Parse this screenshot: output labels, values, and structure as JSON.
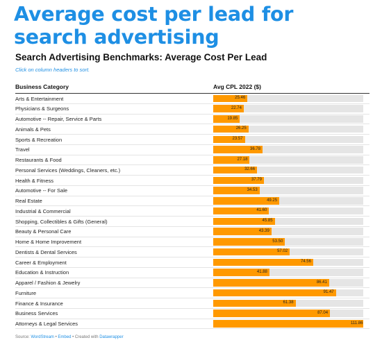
{
  "headline": "Average cost per lead for search advertising",
  "subtitle": "Search Advertising Benchmarks: Average Cost Per Lead",
  "note": "Click on column headers to sort.",
  "columns": {
    "category": "Business Category",
    "value": "Avg CPL 2022 ($)"
  },
  "footer": {
    "source_label": "Source:",
    "source_link": "WordStream",
    "sep1": "•",
    "embed": "Embed",
    "sep2": "•",
    "created_with": "Created with",
    "tool": "Datawrapper"
  },
  "colors": {
    "headline": "#1E8FE4",
    "bar": "#FF9900",
    "track": "#e5e5e5"
  },
  "chart_data": {
    "type": "bar",
    "title": "Search Advertising Benchmarks: Average Cost Per Lead",
    "ylabel": "Avg CPL 2022 ($)",
    "xlabel": "Business Category",
    "ylim": [
      0,
      111.86
    ],
    "grid": false,
    "categories": [
      "Arts & Entertainment",
      "Physicians & Surgeons",
      "Automotive -- Repair, Service & Parts",
      "Animals & Pets",
      "Sports & Recreation",
      "Travel",
      "Restaurants & Food",
      "Personal Services (Weddings, Cleaners, etc.)",
      "Health & Fitness",
      "Automotive -- For Sale",
      "Real Estate",
      "Industrial & Commercial",
      "Shopping, Collectibles & Gifts (General)",
      "Beauty & Personal Care",
      "Home & Home Improvement",
      "Dentists & Dental Services",
      "Career & Employment",
      "Education & Instruction",
      "Apparel / Fashion & Jewelry",
      "Furniture",
      "Finance & Insurance",
      "Business Services",
      "Attorneys & Legal Services"
    ],
    "values": [
      25.46,
      22.74,
      19.85,
      26.25,
      23.57,
      36.78,
      27.18,
      32.66,
      37.79,
      34.53,
      49.25,
      41.6,
      45.85,
      43.39,
      53.5,
      57.02,
      74.56,
      41.88,
      86.41,
      91.47,
      61.38,
      87.04,
      111.86
    ],
    "value_labels": [
      "25.46",
      "22.74",
      "19.85",
      "26.25",
      "23.57",
      "36.78",
      "27.18",
      "32.66",
      "37.79",
      "34.53",
      "49.25",
      "41.60",
      "45.85",
      "43.39",
      "53.50",
      "57.02",
      "74.56",
      "41.88",
      "86.41",
      "91.47",
      "61.38",
      "87.04",
      "111.86"
    ]
  }
}
